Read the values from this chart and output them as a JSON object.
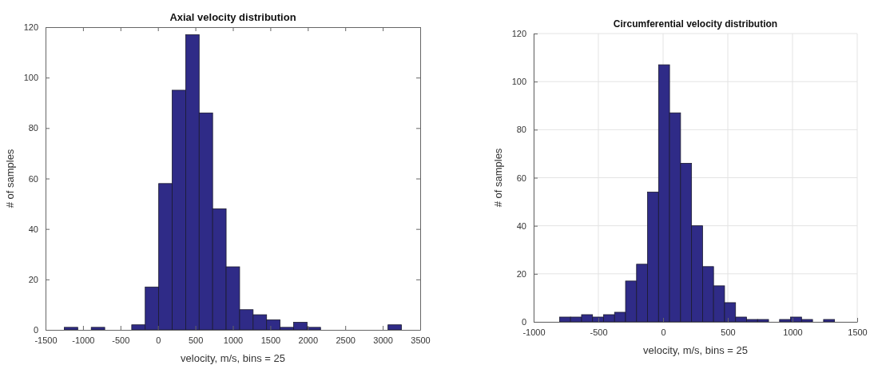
{
  "chart_data": [
    {
      "type": "histogram",
      "title": "Axial velocity distribution",
      "xlabel": "velocity, m/s, bins = 25",
      "ylabel": "# of samples",
      "color": "#2f2b87",
      "bins": [
        -1250,
        -1070,
        -890,
        -710,
        -530,
        -350,
        -170,
        10,
        190,
        370,
        550,
        730,
        910,
        1090,
        1270,
        1450,
        1630,
        1810,
        1990,
        2170,
        2350,
        2530,
        2710,
        2890,
        3070,
        3250
      ],
      "values": [
        1,
        0,
        1,
        0,
        0,
        2,
        17,
        58,
        95,
        117,
        86,
        48,
        25,
        8,
        6,
        4,
        1,
        3,
        1,
        0,
        0,
        0,
        0,
        0,
        2
      ],
      "xlim": [
        -1500,
        3500
      ],
      "xticks": [
        -1500,
        -1000,
        -500,
        0,
        500,
        1000,
        1500,
        2000,
        2500,
        3000,
        3500
      ],
      "ylim": [
        0,
        120
      ],
      "yticks": [
        0,
        20,
        40,
        60,
        80,
        100,
        120
      ],
      "grid": false
    },
    {
      "type": "histogram",
      "title": "Circumferential velocity distribution",
      "xlabel": "velocity, m/s, bins = 25",
      "ylabel": "# of samples",
      "color": "#2f2b87",
      "bins": [
        -800,
        -715,
        -630,
        -545,
        -460,
        -375,
        -290,
        -205,
        -120,
        -35,
        50,
        135,
        220,
        305,
        390,
        475,
        560,
        645,
        730,
        815,
        900,
        985,
        1070,
        1155,
        1240,
        1325
      ],
      "values": [
        2,
        2,
        3,
        2,
        3,
        4,
        17,
        24,
        54,
        107,
        87,
        66,
        40,
        23,
        15,
        8,
        2,
        1,
        1,
        0,
        1,
        2,
        1,
        0,
        1
      ],
      "xlim": [
        -1000,
        1500
      ],
      "xticks": [
        -1000,
        -500,
        0,
        500,
        1000,
        1500
      ],
      "ylim": [
        0,
        120
      ],
      "yticks": [
        0,
        20,
        40,
        60,
        80,
        100,
        120
      ],
      "grid": true
    }
  ]
}
